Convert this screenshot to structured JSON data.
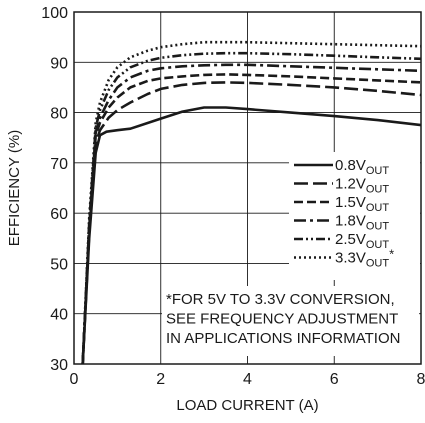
{
  "chart_data": {
    "type": "line",
    "xlabel": "LOAD CURRENT (A)",
    "ylabel": "EFFICIENCY (%)",
    "xlim": [
      0,
      8
    ],
    "ylim": [
      30,
      100
    ],
    "x_ticks": [
      0,
      2,
      4,
      6,
      8
    ],
    "x_tick_labels": [
      "0",
      "2",
      "4",
      "6",
      "8"
    ],
    "y_ticks": [
      30,
      40,
      50,
      60,
      70,
      80,
      90,
      100
    ],
    "y_tick_labels": [
      "30",
      "40",
      "50",
      "60",
      "70",
      "80",
      "90",
      "100"
    ],
    "grid": true,
    "legend_position": "right",
    "series": [
      {
        "name": "0.8V",
        "name_sub": "OUT",
        "name_suffix": "",
        "dash": "solid",
        "x": [
          0.2,
          0.35,
          0.5,
          0.6,
          0.75,
          1.0,
          1.3,
          2.0,
          2.5,
          3.0,
          3.5,
          4.0,
          5.0,
          6.0,
          7.0,
          8.0
        ],
        "y": [
          30,
          55,
          72,
          75.5,
          76.2,
          76.5,
          76.8,
          78.8,
          80.2,
          81,
          81,
          80.7,
          80,
          79.3,
          78.5,
          77.5
        ]
      },
      {
        "name": "1.2V",
        "name_sub": "OUT",
        "name_suffix": "",
        "dash": "long-dash",
        "x": [
          0.2,
          0.35,
          0.5,
          0.6,
          0.8,
          1.0,
          1.3,
          1.7,
          2.0,
          2.5,
          3.0,
          3.5,
          4.0,
          5.0,
          6.0,
          7.0,
          8.0
        ],
        "y": [
          30,
          56,
          74,
          76.5,
          79,
          80.5,
          82,
          83.7,
          84.7,
          85.5,
          85.9,
          86,
          85.9,
          85.5,
          85,
          84.3,
          83.5
        ]
      },
      {
        "name": "1.5V",
        "name_sub": "OUT",
        "name_suffix": "",
        "dash": "medium-dash",
        "x": [
          0.2,
          0.35,
          0.5,
          0.6,
          0.8,
          1.0,
          1.3,
          1.7,
          2.0,
          2.5,
          3.0,
          3.5,
          4.0,
          5.0,
          6.0,
          7.0,
          8.0
        ],
        "y": [
          30,
          57,
          75.5,
          78,
          81,
          83,
          85,
          86.3,
          86.8,
          87.2,
          87.5,
          87.6,
          87.5,
          87.2,
          86.8,
          86.4,
          86
        ]
      },
      {
        "name": "1.8V",
        "name_sub": "OUT",
        "name_suffix": "",
        "dash": "dash-dot",
        "x": [
          0.2,
          0.35,
          0.5,
          0.6,
          0.8,
          1.0,
          1.3,
          1.7,
          2.0,
          2.5,
          3.0,
          3.5,
          4.0,
          5.0,
          6.0,
          7.0,
          8.0
        ],
        "y": [
          30,
          57,
          76,
          79,
          82.5,
          85,
          87,
          88.3,
          88.8,
          89.2,
          89.4,
          89.5,
          89.5,
          89.2,
          88.9,
          88.6,
          88.3
        ]
      },
      {
        "name": "2.5V",
        "name_sub": "OUT",
        "name_suffix": "",
        "dash": "dash-dot-dot",
        "x": [
          0.2,
          0.35,
          0.5,
          0.6,
          0.8,
          1.0,
          1.3,
          1.7,
          2.0,
          2.5,
          3.0,
          3.5,
          4.0,
          5.0,
          6.0,
          7.0,
          8.0
        ],
        "y": [
          30,
          58,
          77,
          80.5,
          84.5,
          87,
          89,
          90.3,
          90.9,
          91.4,
          91.7,
          91.8,
          91.8,
          91.6,
          91.3,
          91,
          90.7
        ]
      },
      {
        "name": "3.3V",
        "name_sub": "OUT",
        "name_suffix": "*",
        "dash": "dotted",
        "x": [
          0.2,
          0.35,
          0.5,
          0.6,
          0.8,
          1.0,
          1.3,
          1.7,
          2.0,
          2.5,
          3.0,
          3.5,
          4.0,
          5.0,
          6.0,
          7.0,
          8.0
        ],
        "y": [
          30,
          59,
          78,
          82,
          86.5,
          89,
          91,
          92.3,
          93,
          93.6,
          94,
          94,
          94,
          93.8,
          93.6,
          93.4,
          93.2
        ]
      }
    ],
    "annotation": [
      "*FOR 5V TO 3.3V CONVERSION,",
      "SEE FREQUENCY ADJUSTMENT",
      "IN APPLICATIONS INFORMATION"
    ]
  }
}
